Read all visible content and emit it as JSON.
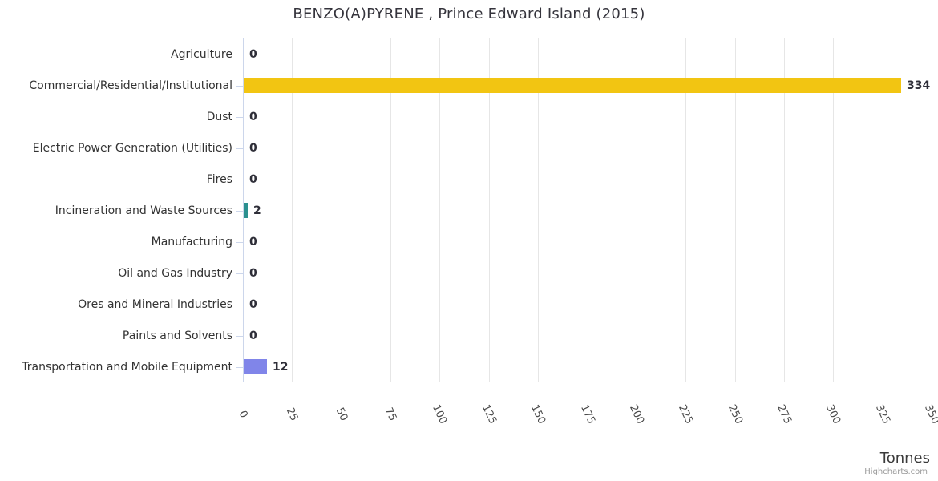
{
  "chart": {
    "title": "BENZO(A)PYRENE , Prince Edward Island (2015)",
    "x_axis_title": "Tonnes",
    "credits_label": "Highcharts.com"
  },
  "chart_data": {
    "type": "bar",
    "orientation": "horizontal",
    "title": "BENZO(A)PYRENE , Prince Edward Island (2015)",
    "xlabel": "Tonnes",
    "ylabel": "",
    "categories": [
      "Agriculture",
      "Commercial/Residential/Institutional",
      "Dust",
      "Electric Power Generation (Utilities)",
      "Fires",
      "Incineration and Waste Sources",
      "Manufacturing",
      "Oil and Gas Industry",
      "Ores and Mineral Industries",
      "Paints and Solvents",
      "Transportation and Mobile Equipment"
    ],
    "values": [
      0,
      334,
      0,
      0,
      0,
      2,
      0,
      0,
      0,
      0,
      12
    ],
    "data_labels": [
      "0",
      "334",
      "0",
      "0",
      "0",
      "2",
      "0",
      "0",
      "0",
      "0",
      "12"
    ],
    "point_colors": [
      null,
      "#f2c512",
      null,
      null,
      null,
      "#2b908f",
      null,
      null,
      null,
      null,
      "#8085e9"
    ],
    "axis": {
      "min": 0,
      "max": 350,
      "tick_interval": 25,
      "tick_labels": [
        "0",
        "25",
        "50",
        "75",
        "100",
        "125",
        "150",
        "175",
        "200",
        "225",
        "250",
        "275",
        "300",
        "325",
        "350"
      ]
    },
    "grid": true,
    "legend": false,
    "theme": {
      "gridline_color": "#e6e6e6",
      "axis_line_color": "#ccd6eb",
      "category_label_color": "#333333",
      "tick_label_color": "#4a4a4a",
      "data_label_color": "#2e2e38",
      "title_color": "#35343c",
      "credits_color": "#999999"
    }
  }
}
